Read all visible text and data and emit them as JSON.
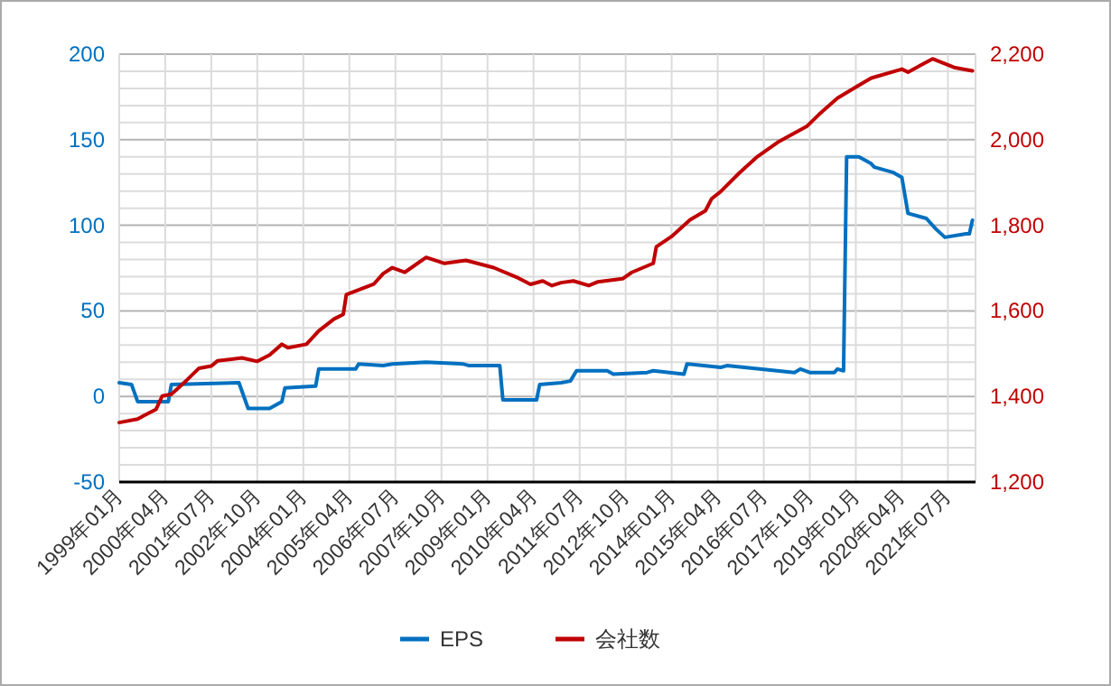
{
  "chart_data": {
    "type": "line",
    "xlim": [
      "1999-01",
      "2022-04"
    ],
    "xticks": [
      {
        "value": "1999-01",
        "label": "1999年01月"
      },
      {
        "value": "2000-04",
        "label": "2000年04月"
      },
      {
        "value": "2001-07",
        "label": "2001年07月"
      },
      {
        "value": "2002-10",
        "label": "2002年10月"
      },
      {
        "value": "2004-01",
        "label": "2004年01月"
      },
      {
        "value": "2005-04",
        "label": "2005年04月"
      },
      {
        "value": "2006-07",
        "label": "2006年07月"
      },
      {
        "value": "2007-10",
        "label": "2007年10月"
      },
      {
        "value": "2009-01",
        "label": "2009年01月"
      },
      {
        "value": "2010-04",
        "label": "2010年04月"
      },
      {
        "value": "2011-07",
        "label": "2011年07月"
      },
      {
        "value": "2012-10",
        "label": "2012年10月"
      },
      {
        "value": "2014-01",
        "label": "2014年01月"
      },
      {
        "value": "2015-04",
        "label": "2015年04月"
      },
      {
        "value": "2016-07",
        "label": "2016年07月"
      },
      {
        "value": "2017-10",
        "label": "2017年10月"
      },
      {
        "value": "2019-01",
        "label": "2019年01月"
      },
      {
        "value": "2020-04",
        "label": "2020年04月"
      },
      {
        "value": "2021-07",
        "label": "2021年07月"
      }
    ],
    "ylim": [
      -50,
      200
    ],
    "yticks": [
      -50,
      0,
      50,
      100,
      150,
      200
    ],
    "y2lim": [
      1200,
      2200
    ],
    "y2ticks": [
      {
        "value": 1200,
        "label": "1,200"
      },
      {
        "value": 1400,
        "label": "1,400"
      },
      {
        "value": 1600,
        "label": "1,600"
      },
      {
        "value": 1800,
        "label": "1,800"
      },
      {
        "value": 2000,
        "label": "2,000"
      },
      {
        "value": 2200,
        "label": "2,200"
      }
    ],
    "grid": true,
    "legend": "bottom",
    "line_style": "solid",
    "series": [
      {
        "name": "EPS",
        "color": "#0070c0",
        "x": [
          "1999-01",
          "1999-05",
          "1999-07",
          "2000-05",
          "2000-06",
          "2002-04",
          "2002-07",
          "2003-02",
          "2003-06",
          "2003-07",
          "2004-05",
          "2004-06",
          "2005-06",
          "2005-07",
          "2006-03",
          "2006-06",
          "2007-05",
          "2008-05",
          "2008-07",
          "2009-05",
          "2009-06",
          "2010-05",
          "2010-06",
          "2011-01",
          "2011-04",
          "2011-06",
          "2012-04",
          "2012-06",
          "2013-05",
          "2013-07",
          "2014-05",
          "2014-06",
          "2015-05",
          "2015-07",
          "2017-05",
          "2017-07",
          "2017-10",
          "2018-06",
          "2018-07",
          "2018-09",
          "2018-10",
          "2019-02",
          "2019-06",
          "2019-07",
          "2020-01",
          "2020-04",
          "2020-06",
          "2020-12",
          "2021-03",
          "2021-06",
          "2022-01",
          "2022-02",
          "2022-03"
        ],
        "values": [
          8,
          7,
          -3,
          -3,
          7,
          8,
          -7,
          -7,
          -3,
          5,
          6,
          16,
          16,
          19,
          18,
          19,
          20,
          19,
          18,
          18,
          -2,
          -2,
          7,
          8,
          9,
          15,
          15,
          13,
          14,
          15,
          13,
          19,
          17,
          18,
          14,
          16,
          14,
          14,
          16,
          15,
          140,
          140,
          136,
          134,
          131,
          128,
          107,
          104,
          98,
          93,
          95,
          95,
          103
        ]
      },
      {
        "name": "会社数",
        "color": "#c00000",
        "axis": "y2",
        "x": [
          "1999-01",
          "1999-07",
          "1999-09",
          "2000-01",
          "2000-03",
          "2000-06",
          "2000-11",
          "2001-03",
          "2001-07",
          "2001-09",
          "2002-05",
          "2002-10",
          "2003-02",
          "2003-06",
          "2003-08",
          "2004-02",
          "2004-06",
          "2004-11",
          "2005-02",
          "2005-03",
          "2005-12",
          "2006-03",
          "2006-06",
          "2006-10",
          "2007-05",
          "2007-11",
          "2008-06",
          "2009-03",
          "2009-11",
          "2010-03",
          "2010-07",
          "2010-10",
          "2011-01",
          "2011-05",
          "2011-10",
          "2012-01",
          "2012-09",
          "2012-12",
          "2013-07",
          "2013-08",
          "2014-01",
          "2014-07",
          "2014-12",
          "2015-02",
          "2015-05",
          "2015-11",
          "2016-05",
          "2016-12",
          "2017-09",
          "2018-01",
          "2018-07",
          "2019-01",
          "2019-06",
          "2020-04",
          "2020-06",
          "2021-02",
          "2021-09",
          "2022-03"
        ],
        "values": [
          1339,
          1347,
          1355,
          1370,
          1401,
          1405,
          1438,
          1466,
          1471,
          1483,
          1490,
          1482,
          1497,
          1522,
          1514,
          1522,
          1553,
          1581,
          1592,
          1638,
          1663,
          1687,
          1701,
          1690,
          1725,
          1711,
          1718,
          1701,
          1677,
          1662,
          1670,
          1659,
          1666,
          1670,
          1659,
          1668,
          1675,
          1690,
          1711,
          1750,
          1774,
          1813,
          1834,
          1862,
          1879,
          1922,
          1961,
          1996,
          2031,
          2059,
          2097,
          2123,
          2144,
          2165,
          2158,
          2189,
          2169,
          2161
        ]
      }
    ]
  }
}
